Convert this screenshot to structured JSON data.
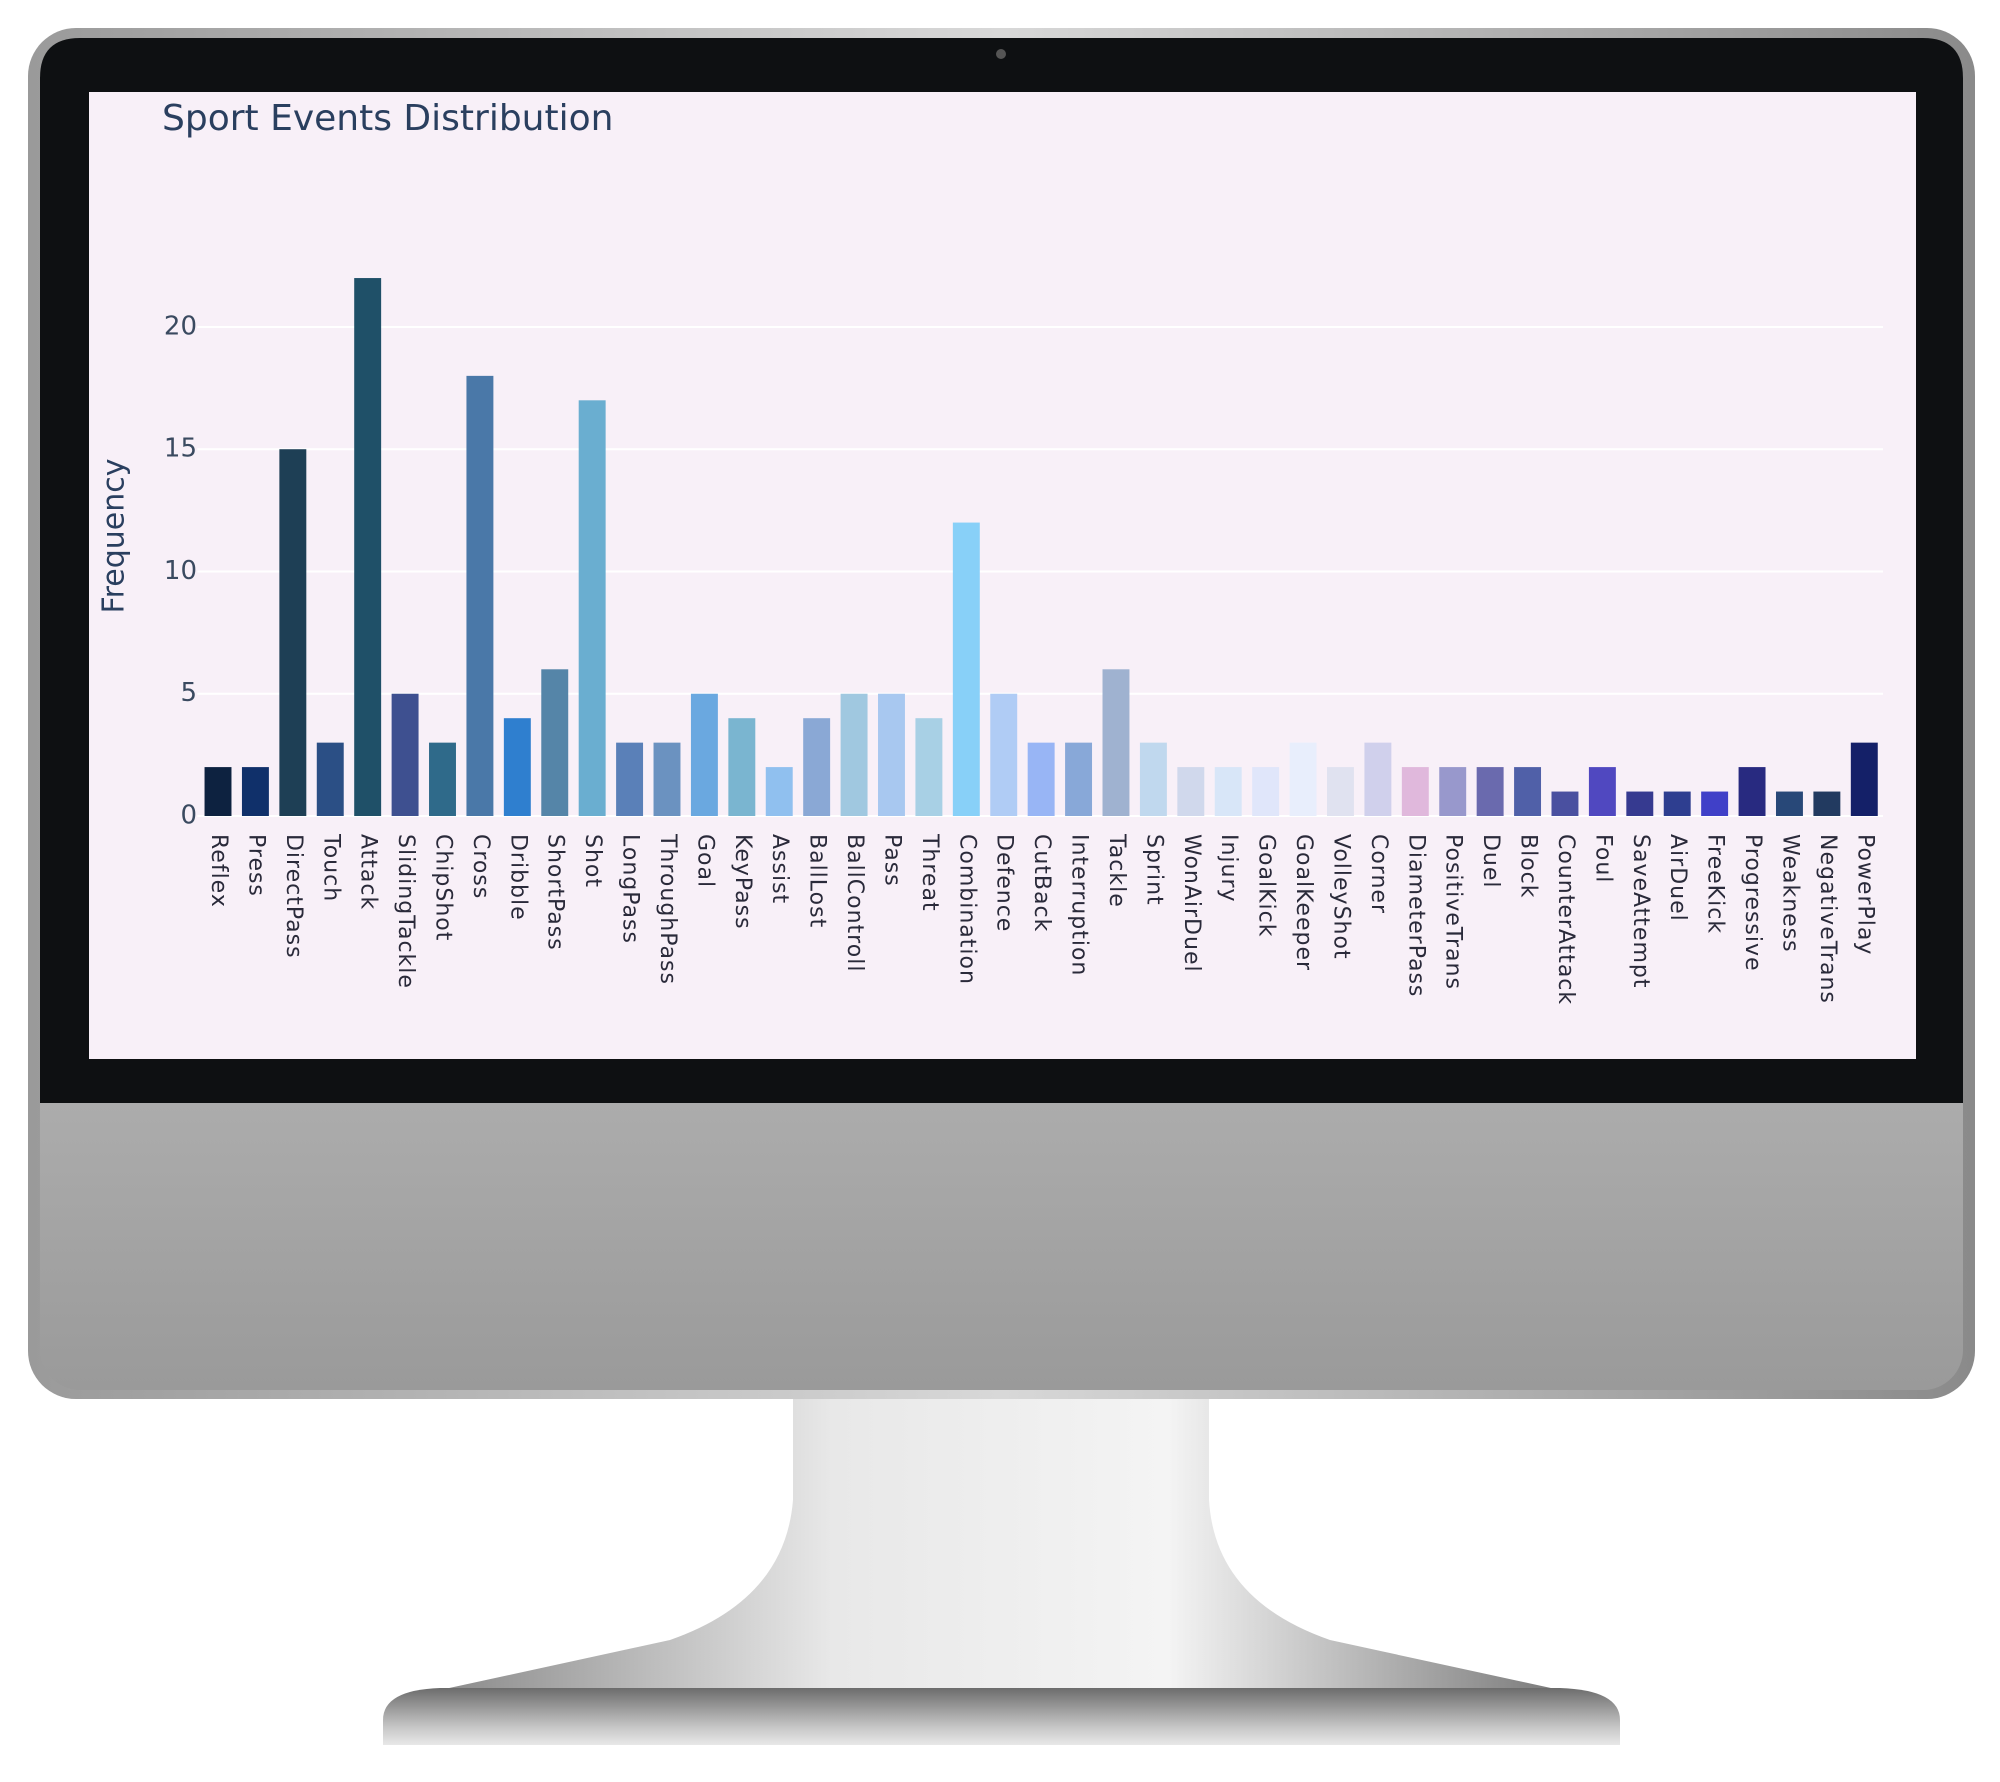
{
  "chart_data": {
    "type": "bar",
    "title": "Sport Events Distribution",
    "y_label": "Frequency",
    "categories": [
      "Reflex",
      "Press",
      "DirectPass",
      "Touch",
      "Attack",
      "SlidingTackle",
      "ChipShot",
      "Cross",
      "Dribble",
      "ShortPass",
      "Shot",
      "LongPass",
      "ThroughPass",
      "Goal",
      "KeyPass",
      "Assist",
      "BallLost",
      "BallControll",
      "Pass",
      "Threat",
      "Combination",
      "Defence",
      "CutBack",
      "Interruption",
      "Tackle",
      "Sprint",
      "WonAirDuel",
      "Injury",
      "GoalKick",
      "GoalKeeper",
      "VolleyShot",
      "Corner",
      "DiameterPass",
      "PositiveTrans",
      "Duel",
      "Block",
      "CounterAttack",
      "Foul",
      "SaveAttempt",
      "AirDuel",
      "FreeKick",
      "Progressive",
      "Weakness",
      "NegativeTrans",
      "PowerPlay"
    ],
    "values": [
      2,
      2,
      15,
      3,
      22,
      5,
      3,
      18,
      4,
      6,
      17,
      3,
      3,
      5,
      4,
      2,
      4,
      5,
      5,
      4,
      12,
      5,
      3,
      3,
      6,
      3,
      2,
      2,
      2,
      3,
      2,
      3,
      2,
      2,
      2,
      2,
      1,
      2,
      1,
      1,
      1,
      2,
      1,
      1,
      3
    ],
    "colors": [
      "#0d2240",
      "#10306a",
      "#1e3f55",
      "#2b4f85",
      "#1f5068",
      "#3e5090",
      "#2f6a8a",
      "#4a78a8",
      "#2f7fcf",
      "#5585a8",
      "#6aaed0",
      "#5a80b8",
      "#6b92c0",
      "#6aa8e0",
      "#7ab5d0",
      "#90c0ef",
      "#8aa8d5",
      "#a0c8e0",
      "#a8c8f0",
      "#a8d0e5",
      "#88d0f8",
      "#b0ccf5",
      "#98b5f5",
      "#88a8d8",
      "#9fb2d0",
      "#c0d8ee",
      "#d0d8ec",
      "#d8e6f8",
      "#e0e6fa",
      "#e8eefc",
      "#e0e2f0",
      "#d0d0ec",
      "#e0b8dc",
      "#9898cc",
      "#6a6aae",
      "#5060a8",
      "#4a50a0",
      "#5048c0",
      "#363a90",
      "#2e3e90",
      "#4040c8",
      "#282a80",
      "#284878",
      "#223a60",
      "#142068"
    ],
    "ylim": [
      0,
      23
    ],
    "yticks": [
      0,
      5,
      10,
      15,
      20
    ],
    "grid": true,
    "grid_color": "#ffffff"
  }
}
